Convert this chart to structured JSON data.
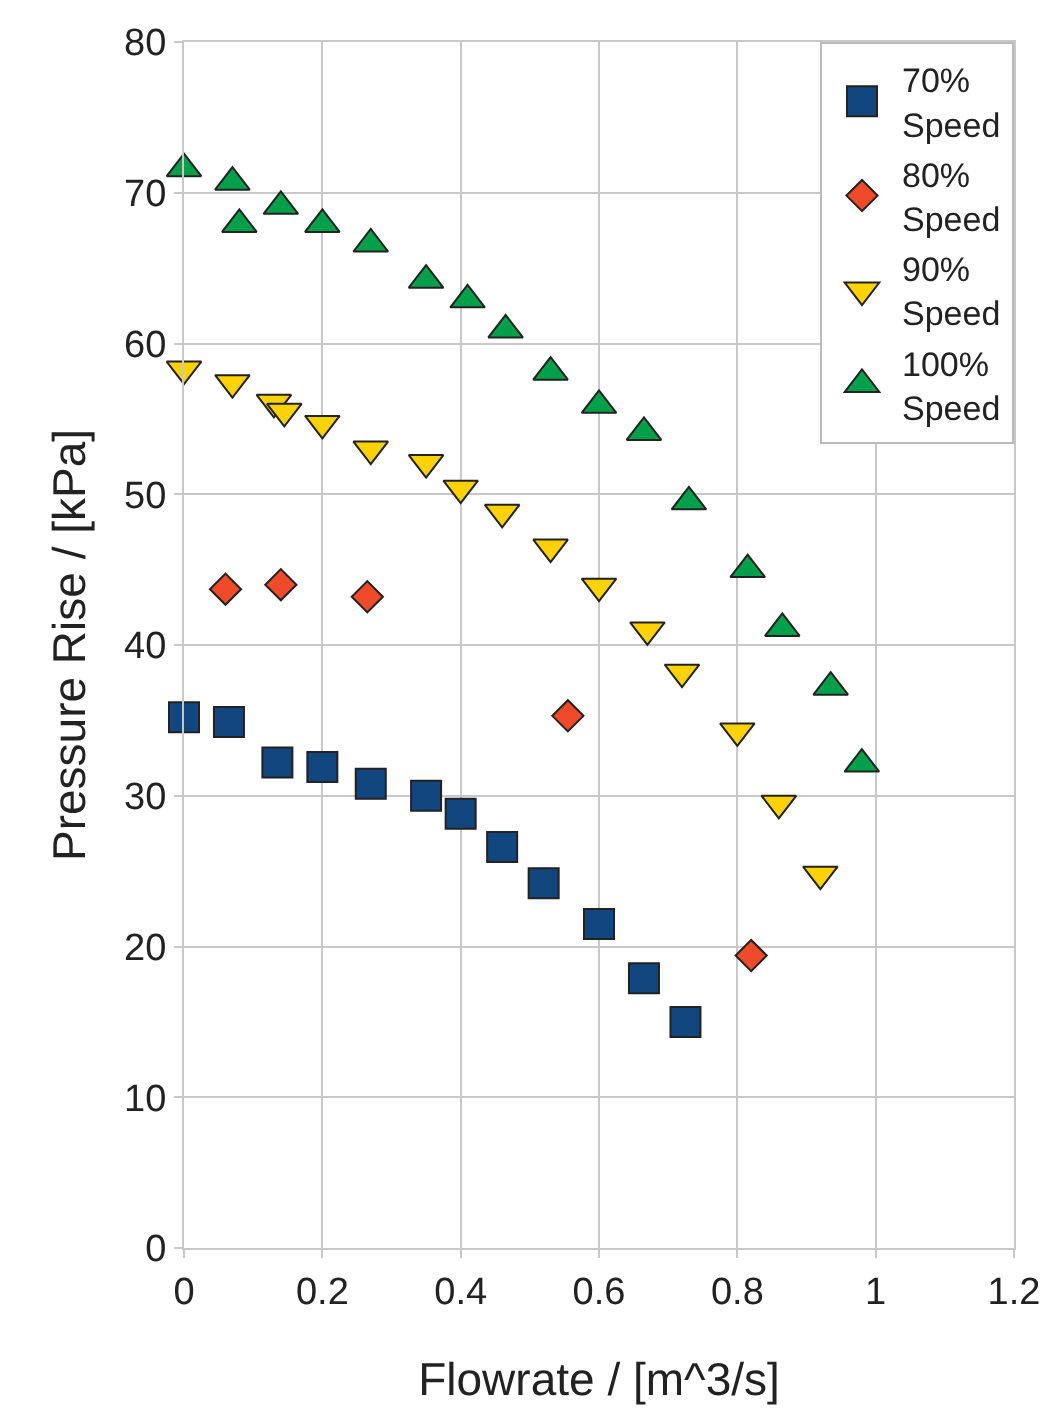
{
  "chart_data": {
    "type": "scatter",
    "xlabel": "Flowrate / [m^3/s]",
    "ylabel": "Pressure Rise / [kPa]",
    "xlim": [
      0,
      1.2
    ],
    "xticks": [
      0,
      0.2,
      0.4,
      0.6,
      0.8,
      1,
      1.2
    ],
    "ylim": [
      0,
      80
    ],
    "yticks": [
      0,
      10,
      20,
      30,
      40,
      50,
      60,
      70,
      80
    ],
    "grid": true,
    "legend": "top right",
    "series": [
      {
        "name": "70% Speed",
        "color": "#12467f",
        "marker": "square",
        "x": [
          0,
          0.065,
          0.135,
          0.2,
          0.27,
          0.35,
          0.4,
          0.46,
          0.52,
          0.6,
          0.665,
          0.725
        ],
        "values": [
          35.2,
          34.9,
          32.2,
          31.9,
          30.8,
          30.0,
          28.8,
          26.6,
          24.2,
          21.5,
          17.9,
          15.0
        ]
      },
      {
        "name": "80% Speed",
        "color": "#ef4a2a",
        "marker": "diamond",
        "x": [
          0.06,
          0.14,
          0.265,
          0.555,
          0.82
        ],
        "values": [
          43.7,
          44.0,
          43.2,
          35.3,
          19.4
        ]
      },
      {
        "name": "90% Speed",
        "color": "#ffd200",
        "marker": "triangle-down",
        "x": [
          0,
          0.07,
          0.13,
          0.145,
          0.2,
          0.27,
          0.35,
          0.4,
          0.46,
          0.53,
          0.6,
          0.67,
          0.72,
          0.8,
          0.86,
          0.92
        ],
        "values": [
          58.3,
          57.4,
          56.1,
          55.5,
          54.7,
          53.0,
          52.1,
          50.4,
          48.8,
          46.5,
          43.9,
          41.0,
          38.2,
          34.3,
          29.5,
          24.8
        ]
      },
      {
        "name": "100% Speed",
        "color": "#00a04a",
        "marker": "triangle",
        "x": [
          0,
          0.07,
          0.08,
          0.14,
          0.2,
          0.27,
          0.35,
          0.41,
          0.465,
          0.53,
          0.6,
          0.665,
          0.73,
          0.815,
          0.865,
          0.935,
          0.98
        ],
        "values": [
          71.6,
          70.7,
          67.9,
          69.1,
          67.9,
          66.6,
          64.2,
          62.9,
          60.9,
          58.1,
          55.9,
          54.1,
          49.5,
          45.0,
          41.1,
          37.2,
          32.1
        ]
      }
    ]
  }
}
